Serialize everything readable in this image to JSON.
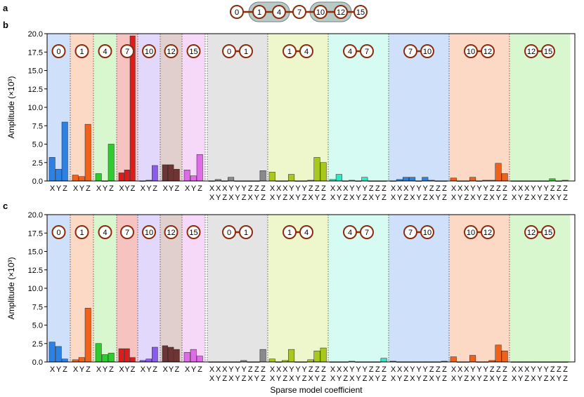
{
  "panel_labels": [
    "a",
    "b",
    "c"
  ],
  "chain": {
    "nodes": [
      "0",
      "1",
      "4",
      "7",
      "10",
      "12",
      "15"
    ],
    "shaded_groups": [
      [
        "1",
        "4"
      ],
      [
        "10",
        "12"
      ]
    ]
  },
  "colors": {
    "node_stroke": "#8b2c0c",
    "node_fill": "#ffffff",
    "shade_fill": "#b9c9c5",
    "sep_line": "#555555",
    "single_bg": [
      "#cfe0fb",
      "#fcd9c4",
      "#d8f7cf",
      "#f7c3c1",
      "#e2d8fb",
      "#e0cfcd",
      "#f6d9f9"
    ],
    "single_bar": [
      "#2a82e6",
      "#f0621a",
      "#2fcc2f",
      "#de1c1c",
      "#8a5cf0",
      "#6e3434",
      "#e06ae8"
    ],
    "pair_bg": [
      "#e4e4e4",
      "#eef7cc",
      "#d6fbf2",
      "#cfe0fb",
      "#fcd9c4",
      "#d8f7cf"
    ],
    "pair_bar": [
      "#8a8a8a",
      "#a8c91a",
      "#2fe8c4",
      "#2a82e6",
      "#f0621a",
      "#2fcc2f"
    ]
  },
  "common": {
    "ylabel": "Amplitude (×10³)",
    "xlabel": "Sparse model coefficient",
    "ylim": [
      0,
      20
    ],
    "yticks": [
      "0.0",
      "2.5",
      "5.0",
      "7.5",
      "10.0",
      "12.5",
      "15.0",
      "17.5",
      "20.0"
    ],
    "single_tick_labels": [
      "X",
      "Y",
      "Z"
    ],
    "pair_tick_row1": "XXXYYYZZZ",
    "pair_tick_row2": "XYZXYZXYZ",
    "pair_coefficients": [
      "XX",
      "XY",
      "XZ",
      "YX",
      "YY",
      "YZ",
      "ZX",
      "ZY",
      "ZZ"
    ]
  },
  "chart_data": [
    {
      "panel": "b",
      "type": "bar",
      "ylabel": "Amplitude (×10³)",
      "ylim": [
        0,
        20
      ],
      "single_groups": [
        {
          "qubit": "0",
          "values": [
            3.2,
            1.6,
            8.0
          ]
        },
        {
          "qubit": "1",
          "values": [
            0.8,
            0.6,
            7.7
          ]
        },
        {
          "qubit": "4",
          "values": [
            1.0,
            0.0,
            5.0
          ]
        },
        {
          "qubit": "7",
          "values": [
            1.1,
            1.5,
            19.7
          ]
        },
        {
          "qubit": "10",
          "values": [
            0.0,
            0.1,
            2.1
          ]
        },
        {
          "qubit": "12",
          "values": [
            2.2,
            2.2,
            1.6
          ]
        },
        {
          "qubit": "15",
          "values": [
            1.5,
            0.7,
            3.6
          ]
        }
      ],
      "pair_groups": [
        {
          "pair": [
            "0",
            "1"
          ],
          "values": [
            0.0,
            0.2,
            0.0,
            0.5,
            0.0,
            0.0,
            0.0,
            0.0,
            1.4
          ]
        },
        {
          "pair": [
            "1",
            "4"
          ],
          "values": [
            1.2,
            0.0,
            0.0,
            0.9,
            0.0,
            0.0,
            0.1,
            3.2,
            2.5
          ]
        },
        {
          "pair": [
            "4",
            "7"
          ],
          "values": [
            0.2,
            0.9,
            0.0,
            0.1,
            0.0,
            0.5,
            0.0,
            0.0,
            0.0
          ]
        },
        {
          "pair": [
            "7",
            "10"
          ],
          "values": [
            0.0,
            0.2,
            0.5,
            0.5,
            0.0,
            0.5,
            0.1,
            0.0,
            0.0
          ]
        },
        {
          "pair": [
            "10",
            "12"
          ],
          "values": [
            0.4,
            0.0,
            0.0,
            0.5,
            0.0,
            0.1,
            0.1,
            2.4,
            1.0
          ]
        },
        {
          "pair": [
            "12",
            "15"
          ],
          "values": [
            0.0,
            0.0,
            0.0,
            0.0,
            0.0,
            0.0,
            0.3,
            0.0,
            0.1
          ]
        }
      ]
    },
    {
      "panel": "c",
      "type": "bar",
      "ylabel": "Amplitude (×10³)",
      "xlabel": "Sparse model coefficient",
      "ylim": [
        0,
        20
      ],
      "single_groups": [
        {
          "qubit": "0",
          "values": [
            2.7,
            2.1,
            0.4
          ]
        },
        {
          "qubit": "1",
          "values": [
            0.3,
            0.6,
            7.3
          ]
        },
        {
          "qubit": "4",
          "values": [
            2.5,
            1.0,
            1.2
          ]
        },
        {
          "qubit": "7",
          "values": [
            1.8,
            1.8,
            0.6
          ]
        },
        {
          "qubit": "10",
          "values": [
            0.2,
            0.4,
            2.0
          ]
        },
        {
          "qubit": "12",
          "values": [
            2.2,
            2.0,
            1.7
          ]
        },
        {
          "qubit": "15",
          "values": [
            1.3,
            1.7,
            0.8
          ]
        }
      ],
      "pair_groups": [
        {
          "pair": [
            "0",
            "1"
          ],
          "values": [
            0.0,
            0.0,
            0.0,
            0.0,
            0.0,
            0.2,
            0.0,
            0.0,
            1.7
          ]
        },
        {
          "pair": [
            "1",
            "4"
          ],
          "values": [
            0.4,
            0.0,
            0.2,
            1.7,
            0.0,
            0.0,
            0.3,
            1.5,
            1.9
          ]
        },
        {
          "pair": [
            "4",
            "7"
          ],
          "values": [
            0.0,
            0.0,
            0.0,
            0.1,
            0.0,
            0.0,
            0.0,
            0.0,
            0.5
          ]
        },
        {
          "pair": [
            "7",
            "10"
          ],
          "values": [
            0.1,
            0.0,
            0.0,
            0.0,
            0.0,
            0.0,
            0.0,
            0.0,
            0.1
          ]
        },
        {
          "pair": [
            "10",
            "12"
          ],
          "values": [
            0.7,
            0.0,
            0.0,
            0.9,
            0.0,
            0.0,
            0.2,
            2.3,
            1.5
          ]
        },
        {
          "pair": [
            "12",
            "15"
          ],
          "values": [
            0.0,
            0.0,
            0.0,
            0.0,
            0.0,
            0.0,
            0.0,
            0.0,
            0.0
          ]
        }
      ]
    }
  ]
}
